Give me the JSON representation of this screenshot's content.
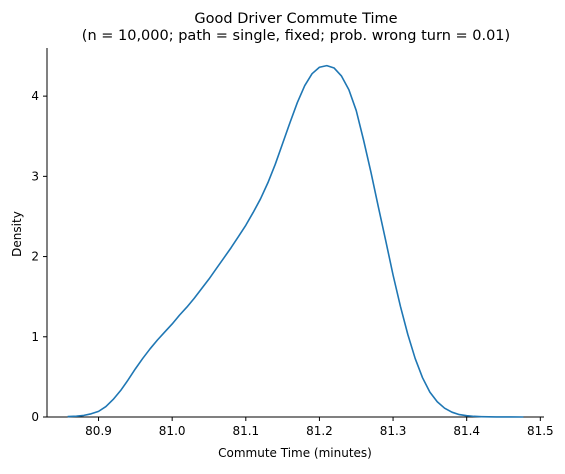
{
  "chart_data": {
    "type": "line",
    "title": "Good Driver Commute Time",
    "subtitle": "(n = 10,000; path = single, fixed; prob. wrong turn = 0.01)",
    "xlabel": "Commute Time (minutes)",
    "ylabel": "Density",
    "xlim": [
      80.83,
      81.505
    ],
    "ylim": [
      0,
      4.6
    ],
    "x_ticks": [
      "80.9",
      "81.0",
      "81.1",
      "81.2",
      "81.3",
      "81.4",
      "81.5"
    ],
    "y_ticks": [
      "0",
      "1",
      "2",
      "3",
      "4"
    ],
    "grid": false,
    "legend": "none",
    "series": [
      {
        "color": "#1f77b4",
        "x": [
          80.858,
          80.87,
          80.88,
          80.89,
          80.9,
          80.91,
          80.92,
          80.93,
          80.94,
          80.95,
          80.96,
          80.97,
          80.98,
          80.99,
          81.0,
          81.01,
          81.02,
          81.03,
          81.04,
          81.05,
          81.06,
          81.07,
          81.08,
          81.09,
          81.1,
          81.11,
          81.12,
          81.13,
          81.14,
          81.15,
          81.16,
          81.17,
          81.18,
          81.19,
          81.2,
          81.21,
          81.22,
          81.23,
          81.24,
          81.25,
          81.26,
          81.27,
          81.28,
          81.29,
          81.3,
          81.31,
          81.32,
          81.33,
          81.34,
          81.35,
          81.36,
          81.37,
          81.38,
          81.39,
          81.4,
          81.41,
          81.42,
          81.43,
          81.44,
          81.45,
          81.46,
          81.477
        ],
        "y": [
          0.005,
          0.01,
          0.02,
          0.04,
          0.07,
          0.13,
          0.22,
          0.33,
          0.46,
          0.6,
          0.73,
          0.85,
          0.96,
          1.06,
          1.16,
          1.27,
          1.37,
          1.48,
          1.6,
          1.72,
          1.85,
          1.98,
          2.11,
          2.25,
          2.39,
          2.55,
          2.72,
          2.92,
          3.15,
          3.41,
          3.67,
          3.92,
          4.13,
          4.28,
          4.36,
          4.38,
          4.35,
          4.25,
          4.08,
          3.82,
          3.45,
          3.05,
          2.62,
          2.2,
          1.77,
          1.38,
          1.03,
          0.73,
          0.49,
          0.31,
          0.19,
          0.11,
          0.06,
          0.03,
          0.016,
          0.008,
          0.004,
          0.002,
          0.001,
          0.0005,
          0.0002,
          0.0
        ]
      }
    ]
  }
}
